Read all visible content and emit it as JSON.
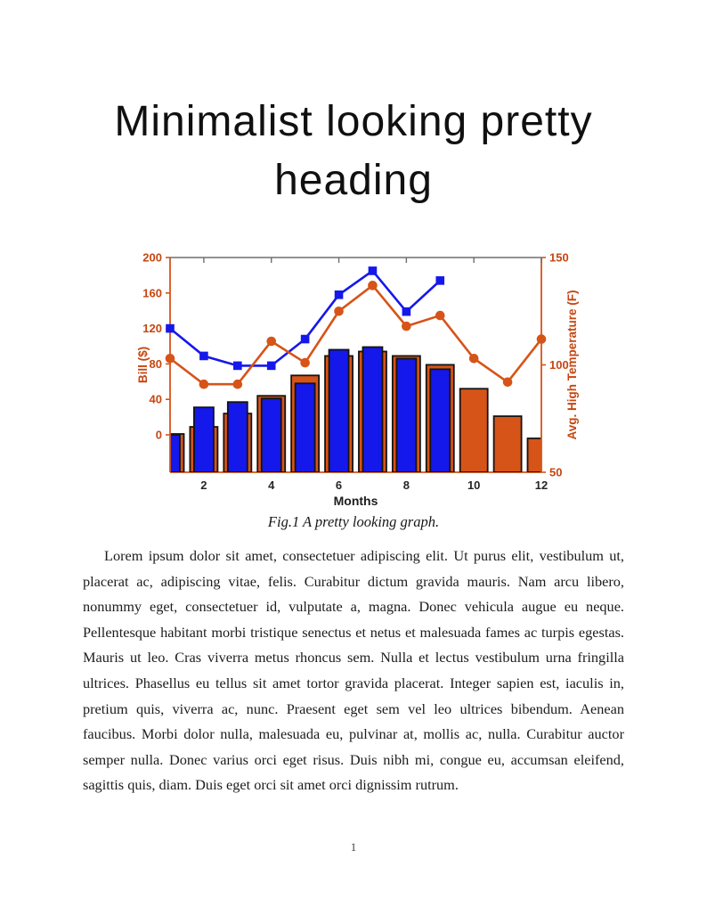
{
  "page": {
    "title": "Minimalist looking pretty heading",
    "figure_caption": "Fig.1 A pretty looking graph.",
    "body_paragraph": "Lorem ipsum dolor sit amet, consectetuer adipiscing elit. Ut purus elit, vestibulum ut, placerat ac, adipiscing vitae, felis. Curabitur dictum gravida mauris. Nam arcu libero, nonummy eget, consectetuer id, vulputate a, magna. Donec vehicula augue eu neque. Pellentesque habitant morbi tristique senectus et netus et malesuada fames ac turpis egestas. Mauris ut leo. Cras viverra metus rhoncus sem. Nulla et lectus vestibulum urna fringilla ultrices. Phasellus eu tellus sit amet tortor gravida placerat. Integer sapien est, iaculis in, pretium quis, viverra ac, nunc. Praesent eget sem vel leo ultrices bibendum. Aenean faucibus. Morbi dolor nulla, malesuada eu, pulvinar at, mollis ac, nulla. Curabitur auctor semper nulla. Donec varius orci eget risus. Duis nibh mi, congue eu, accumsan eleifend, sagittis quis, diam. Duis eget orci sit amet orci dignissim rutrum.",
    "page_number": "1"
  },
  "chart_data": {
    "type": "bar",
    "title": "",
    "xlabel": "Months",
    "ylabel_left": "Bill ($)",
    "ylabel_right": "Avg. High Temperature (F)",
    "x_ticks": [
      2,
      4,
      6,
      8,
      10,
      12
    ],
    "left_axis": {
      "ticks": [
        0,
        40,
        80,
        120,
        160,
        200
      ],
      "range": [
        -42,
        200
      ]
    },
    "right_axis": {
      "ticks": [
        50,
        100,
        150
      ],
      "range": [
        50,
        150
      ]
    },
    "grid": false,
    "legend": "none",
    "colors": {
      "orange": "#d65418",
      "blue": "#1518ea",
      "axis_text": "#c64611",
      "x_text": "#262626",
      "top_spine": "#6f6f6f",
      "bar_edge": "#141414"
    },
    "series": [
      {
        "name": "temperature-bars",
        "type": "bar",
        "axis": "left",
        "color": "#d65418",
        "months": [
          1,
          2,
          3,
          4,
          5,
          6,
          7,
          8,
          9,
          10,
          11,
          12
        ],
        "values": [
          1,
          9,
          24,
          44,
          67,
          89,
          94,
          89,
          79,
          52,
          21,
          -4
        ]
      },
      {
        "name": "bill-bars",
        "type": "bar",
        "axis": "left",
        "color": "#1518ea",
        "months": [
          1,
          2,
          3,
          4,
          5,
          6,
          7,
          8,
          9
        ],
        "values": [
          0,
          31,
          37,
          41,
          58,
          96,
          99,
          86,
          74
        ]
      },
      {
        "name": "bill-line",
        "type": "line",
        "marker": "square",
        "axis": "left",
        "color": "#1518ea",
        "months": [
          1,
          2,
          3,
          4,
          5,
          6,
          7,
          8,
          9
        ],
        "values": [
          120,
          89,
          78,
          78,
          108,
          158,
          185,
          139,
          174
        ]
      },
      {
        "name": "temperature-line",
        "type": "line",
        "marker": "circle",
        "axis": "right",
        "color": "#d65418",
        "months": [
          1,
          2,
          3,
          4,
          5,
          6,
          7,
          8,
          9,
          10,
          11,
          12
        ],
        "values": [
          103,
          91,
          91,
          111,
          101,
          125,
          137,
          118,
          123,
          103,
          92,
          112
        ]
      }
    ]
  }
}
